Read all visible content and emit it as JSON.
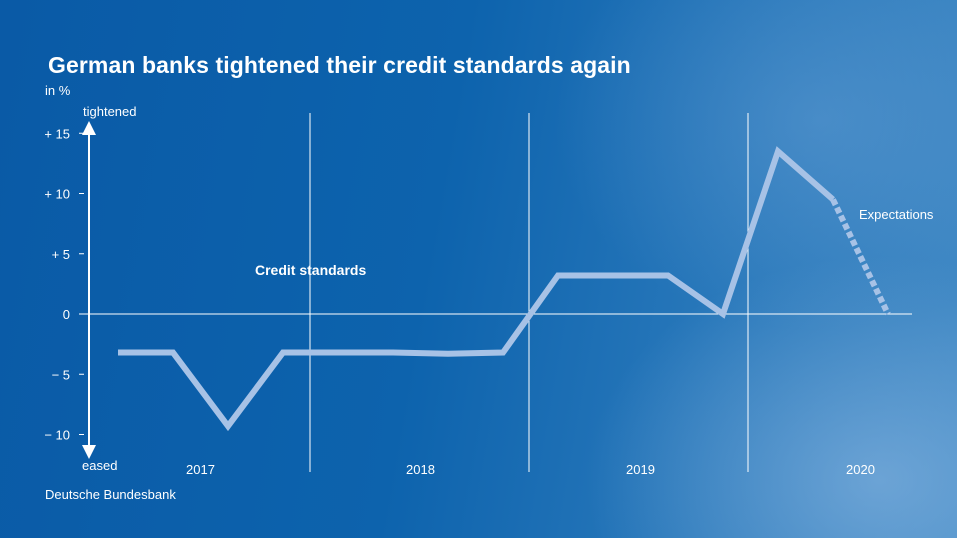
{
  "title": "German banks tightened their credit standards again",
  "source": "Deutsche Bundesbank",
  "colors": {
    "line": "#a7c2e6",
    "axis": "#ffffff"
  },
  "chart_data": {
    "type": "line",
    "ylabel": "in %",
    "ylim": [
      -10,
      15
    ],
    "yticks": [
      {
        "value": 15,
        "label": "+ 15"
      },
      {
        "value": 10,
        "label": "+ 10"
      },
      {
        "value": 5,
        "label": "+   5"
      },
      {
        "value": 0,
        "label": "0"
      },
      {
        "value": -5,
        "label": "−   5"
      },
      {
        "value": -10,
        "label": "− 10"
      }
    ],
    "arrow_top_label": "tightened",
    "arrow_bottom_label": "eased",
    "years": [
      "2017",
      "2018",
      "2019",
      "2020"
    ],
    "grid": "vertical year separators",
    "series": [
      {
        "name": "Credit standards",
        "x": [
          "2017-Q1",
          "2017-Q2",
          "2017-Q3",
          "2017-Q4",
          "2018-Q1",
          "2018-Q2",
          "2018-Q3",
          "2018-Q4",
          "2019-Q1",
          "2019-Q2",
          "2019-Q3",
          "2019-Q4",
          "2020-Q1",
          "2020-Q2"
        ],
        "values": [
          -3.2,
          -3.2,
          -9.3,
          -3.2,
          -3.2,
          -3.2,
          -3.3,
          -3.2,
          3.2,
          3.2,
          3.2,
          0,
          13.5,
          9.5
        ]
      },
      {
        "name": "Expectations",
        "style": "dashed",
        "x": [
          "2020-Q2",
          "2020-Q3"
        ],
        "values": [
          9.5,
          0
        ]
      }
    ]
  }
}
